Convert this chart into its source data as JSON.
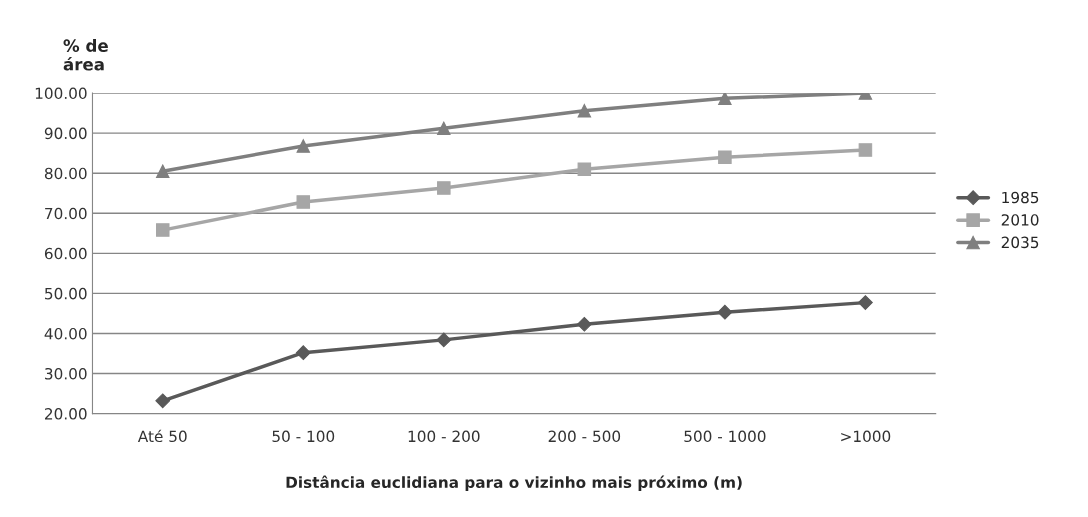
{
  "chart_data": {
    "type": "line",
    "ylabel": "% de\nárea",
    "xlabel": "Distância euclidiana para o vizinho mais próximo (m)",
    "categories": [
      "Até 50",
      "50 - 100",
      "100 - 200",
      "200 - 500",
      "500 - 1000",
      ">1000"
    ],
    "series": [
      {
        "name": "1985",
        "color": "#595959",
        "marker": "diamond",
        "values": [
          23.2,
          35.2,
          38.4,
          42.3,
          45.3,
          47.7
        ]
      },
      {
        "name": "2010",
        "color": "#a6a6a6",
        "marker": "square",
        "values": [
          65.8,
          72.8,
          76.3,
          81.0,
          84.0,
          85.8
        ]
      },
      {
        "name": "2035",
        "color": "#7f7f7f",
        "marker": "triangle",
        "values": [
          80.5,
          86.8,
          91.2,
          95.6,
          98.7,
          100.0
        ]
      }
    ],
    "ylim": [
      20,
      100
    ],
    "yticks": [
      {
        "value": 20,
        "label": "20.00"
      },
      {
        "value": 30,
        "label": "30.00"
      },
      {
        "value": 40,
        "label": "40.00"
      },
      {
        "value": 50,
        "label": "50.00"
      },
      {
        "value": 60,
        "label": "60.00"
      },
      {
        "value": 70,
        "label": "70.00"
      },
      {
        "value": 80,
        "label": "80.00"
      },
      {
        "value": 90,
        "label": "90.00"
      },
      {
        "value": 100,
        "label": "100.00"
      }
    ],
    "grid": "y",
    "legend": "right",
    "line_style": "solid"
  }
}
